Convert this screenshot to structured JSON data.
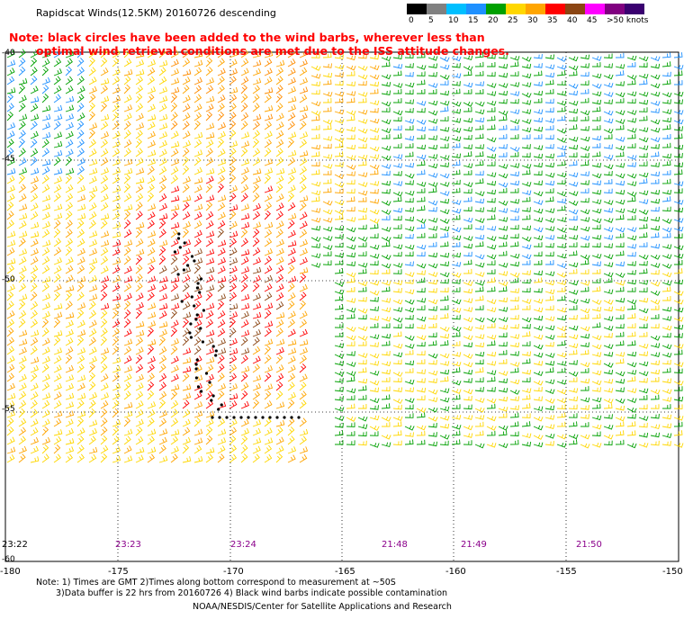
{
  "title": "Rapidscat Winds(12.5KM) 20160726 descending",
  "note": {
    "line1": "Note: black circles have been added to the wind barbs, wherever less than",
    "line2": "optimal wind retrieval conditions are met due to the ISS attitude changes."
  },
  "legend": {
    "labels": [
      "0",
      "5",
      "10",
      "15",
      "20",
      "25",
      "30",
      "35",
      "40",
      "45",
      ">50 knots"
    ],
    "colors": [
      "#000000",
      "#808080",
      "#00bfff",
      "#1e90ff",
      "#00a000",
      "#ffd700",
      "#ffa500",
      "#ff0000",
      "#8b4513",
      "#ff00ff",
      "#800080",
      "#3a0070"
    ]
  },
  "axes": {
    "lat_labels": [
      "-40",
      "-45",
      "-50",
      "-55",
      "-60"
    ],
    "lon_labels": [
      "-180",
      "-175",
      "-170",
      "-165",
      "-160",
      "-155",
      "-150"
    ]
  },
  "pass_times": [
    "23:22",
    "23:23",
    "23:24",
    "21:48",
    "21:49",
    "21:50"
  ],
  "footer": {
    "line1": "Note: 1) Times are GMT 2)Times along bottom correspond to measurement at ~50S",
    "line2": "3)Data buffer is 22 hrs from 20160726 4) Black wind barbs indicate possible contamination",
    "credit": "NOAA/NESDIS/Center for Satellite Applications and Research"
  }
}
